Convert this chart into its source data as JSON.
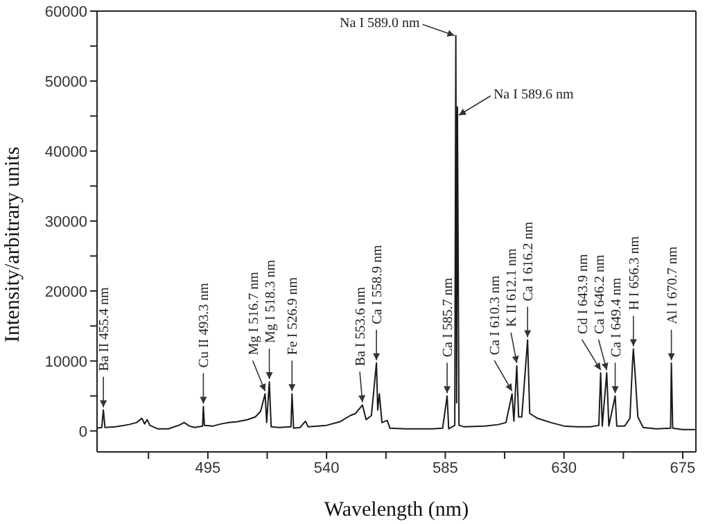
{
  "chart_data": {
    "type": "line",
    "xlabel": "Wavelength (nm)",
    "ylabel": "Intensity/arbitrary units",
    "xlim": [
      453,
      680
    ],
    "xticks": [
      {
        "value": 472.5,
        "label": null
      },
      495,
      {
        "value": 517.5,
        "label": null
      },
      540,
      {
        "value": 562.5,
        "label": null
      },
      585,
      {
        "value": 607.5,
        "label": null
      },
      630,
      {
        "value": 652.5,
        "label": null
      },
      675
    ],
    "ylim": [
      -3000,
      60000
    ],
    "yticks": [
      0,
      {
        "value": 5000,
        "label": null
      },
      10000,
      {
        "value": 15000,
        "label": null
      },
      20000,
      {
        "value": 25000,
        "label": null
      },
      30000,
      {
        "value": 35000,
        "label": null
      },
      40000,
      {
        "value": 45000,
        "label": null
      },
      50000,
      {
        "value": 55000,
        "label": null
      },
      60000
    ],
    "grid": false,
    "marker": "none",
    "line_style": "solid",
    "series": [
      {
        "color": "#1a1a1a",
        "x": [
          453,
          454.8,
          455.4,
          456,
          460,
          465,
          468,
          470,
          471,
          472,
          473,
          476,
          480,
          484,
          486,
          488,
          490,
          493,
          493.3,
          493.7,
          497,
          500,
          503,
          506,
          510,
          513,
          515,
          516.7,
          517.3,
          518.3,
          519,
          522,
          526.5,
          526.9,
          527.5,
          530,
          532,
          533,
          540,
          545,
          549,
          551,
          553.6,
          555,
          557,
          558.9,
          559.4,
          560,
          561,
          563,
          564,
          570,
          575,
          580,
          584,
          585.7,
          586.3,
          588.6,
          589.0,
          589.3,
          589.6,
          590.2,
          592,
          600,
          605,
          608,
          610.3,
          611,
          612.1,
          612.8,
          614,
          616.2,
          617,
          620,
          625,
          630,
          635,
          640,
          643.2,
          643.9,
          644.5,
          646.2,
          647,
          649.4,
          650,
          653,
          655,
          656,
          656.3,
          656.8,
          658,
          660,
          665,
          670.4,
          670.7,
          671.2,
          675,
          680
        ],
        "values": [
          400,
          500,
          3000,
          500,
          600,
          900,
          1200,
          1800,
          1000,
          1600,
          800,
          300,
          300,
          800,
          1200,
          700,
          500,
          700,
          3500,
          800,
          700,
          1000,
          1200,
          1300,
          1600,
          2000,
          2800,
          5300,
          1200,
          7000,
          600,
          500,
          600,
          5300,
          400,
          500,
          1400,
          600,
          800,
          1300,
          2200,
          2500,
          3700,
          1600,
          2200,
          9700,
          3000,
          5300,
          1200,
          1500,
          400,
          300,
          300,
          300,
          400,
          5000,
          300,
          800,
          56500,
          4000,
          46300,
          800,
          600,
          700,
          900,
          1200,
          5300,
          1400,
          9300,
          2000,
          2000,
          13000,
          2500,
          1800,
          1200,
          700,
          600,
          600,
          800,
          8300,
          700,
          8300,
          700,
          5000,
          700,
          700,
          1800,
          10000,
          11700,
          9000,
          2000,
          500,
          300,
          400,
          9700,
          400,
          200,
          200
        ]
      }
    ],
    "annotations": [
      {
        "text": "Ba II  455.4 nm",
        "x": 455.4,
        "y": 3000
      },
      {
        "text": "Cu II  493.3 nm",
        "x": 493.3,
        "y": 3500
      },
      {
        "text": "Mg I 516.7 nm",
        "x": 516.7,
        "y": 5300
      },
      {
        "text": "Mg I 518.3 nm",
        "x": 518.3,
        "y": 7000
      },
      {
        "text": "Fe I 526.9 nm",
        "x": 526.9,
        "y": 5300
      },
      {
        "text": "Ba I 553.6 nm",
        "x": 553.6,
        "y": 3700
      },
      {
        "text": "Ca I 558.9 nm",
        "x": 558.9,
        "y": 9700
      },
      {
        "text": "Ca I 585.7 nm",
        "x": 585.7,
        "y": 5000
      },
      {
        "text": "Na I 589.0 nm",
        "x": 589.0,
        "y": 56500
      },
      {
        "text": "Na I 589.6 nm",
        "x": 589.6,
        "y": 46300
      },
      {
        "text": "Ca I 610.3 nm",
        "x": 610.3,
        "y": 5300
      },
      {
        "text": "K II  612.1 nm",
        "x": 612.1,
        "y": 9300
      },
      {
        "text": "Ca I 616.2 nm",
        "x": 616.2,
        "y": 13000
      },
      {
        "text": "Cd I 643.9 nm",
        "x": 643.9,
        "y": 8300
      },
      {
        "text": "Ca I 646.2 nm",
        "x": 646.2,
        "y": 8300
      },
      {
        "text": "Ca I 649.4 nm",
        "x": 649.4,
        "y": 5000
      },
      {
        "text": "H I 656.3 nm",
        "x": 656.3,
        "y": 11700
      },
      {
        "text": "Al I 670.7 nm",
        "x": 670.7,
        "y": 9700
      }
    ]
  }
}
